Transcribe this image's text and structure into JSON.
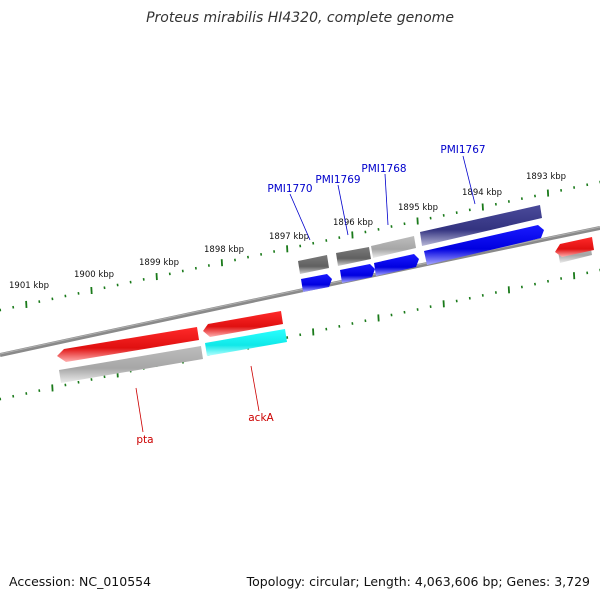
{
  "title": "Proteus mirabilis HI4320, complete genome",
  "footer": {
    "accession": "Accession: NC_010554",
    "summary": "Topology: circular; Length: 4,063,606 bp; Genes: 3,729"
  },
  "ruler_labels": [
    "1901 kbp",
    "1900 kbp",
    "1899 kbp",
    "1898 kbp",
    "1897 kbp",
    "1896 kbp",
    "1895 kbp",
    "1894 kbp",
    "1893 kbp"
  ],
  "colors": {
    "backbone": "#8a8a8a",
    "tick": "#1a7a1a",
    "forward_label": "#0000cc",
    "reverse_label": "#cc0000",
    "red": "#ff1a1a",
    "blue": "#0000ff",
    "navy": "#3c3c8c",
    "gray_dark": "#707070",
    "gray_light": "#b4b4b4",
    "cyan": "#19ffff"
  },
  "gene_labels_forward": [
    "PMI1770",
    "PMI1769",
    "PMI1768",
    "PMI1767"
  ],
  "gene_labels_reverse": [
    "pta",
    "ackA"
  ]
}
